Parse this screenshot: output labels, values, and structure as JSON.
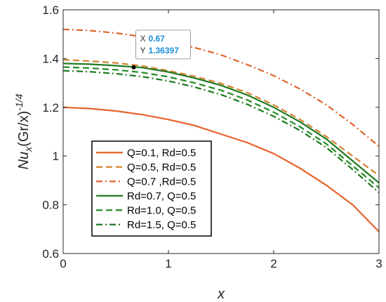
{
  "chart_data": {
    "type": "line",
    "xlabel": "x",
    "ylabel_base": "Nu",
    "ylabel_sub": "x",
    "ylabel_rest": "(Gr/x)",
    "ylabel_exp": "-1/4",
    "xlim": [
      0,
      3
    ],
    "ylim": [
      0.6,
      1.6
    ],
    "xticks": [
      0,
      1,
      2,
      3
    ],
    "yticks": [
      0.6,
      0.8,
      1.0,
      1.2,
      1.4,
      1.6
    ],
    "ytick_labels": [
      "0.6",
      "0.8",
      "1",
      "1.2",
      "1.4",
      "1.6"
    ],
    "grid": false,
    "legend_position": "lower-left",
    "x": [
      0,
      0.25,
      0.5,
      0.75,
      1,
      1.25,
      1.5,
      1.75,
      2,
      2.25,
      2.5,
      2.75,
      3
    ],
    "series": [
      {
        "name": "Q=0.1, Rd=0.5",
        "color": "#e8622a",
        "dash": "solid",
        "values": [
          1.2,
          1.195,
          1.185,
          1.17,
          1.15,
          1.125,
          1.09,
          1.055,
          1.01,
          0.95,
          0.88,
          0.8,
          0.69
        ]
      },
      {
        "name": "Q=0.5, Rd=0.5",
        "color": "#d4822e",
        "dash": "dashed",
        "values": [
          1.395,
          1.39,
          1.382,
          1.37,
          1.35,
          1.327,
          1.298,
          1.26,
          1.21,
          1.15,
          1.08,
          1.0,
          0.92
        ]
      },
      {
        "name": "Q=0.7 ,Rd=0.5",
        "color": "#e0642a",
        "dash": "dashdot",
        "values": [
          1.52,
          1.515,
          1.505,
          1.49,
          1.47,
          1.445,
          1.415,
          1.375,
          1.33,
          1.275,
          1.21,
          1.13,
          1.04
        ]
      },
      {
        "name": "Rd=0.7, Q=0.5",
        "color": "#1f7a1f",
        "dash": "solid",
        "values": [
          1.38,
          1.377,
          1.371,
          1.363,
          1.345,
          1.32,
          1.29,
          1.25,
          1.2,
          1.14,
          1.07,
          0.98,
          0.89
        ]
      },
      {
        "name": "Rd=1.0, Q=0.5",
        "color": "#228b22",
        "dash": "dashed",
        "values": [
          1.365,
          1.361,
          1.354,
          1.343,
          1.325,
          1.3,
          1.27,
          1.23,
          1.18,
          1.12,
          1.05,
          0.96,
          0.87
        ]
      },
      {
        "name": "Rd=1.5, Q=0.5",
        "color": "#1f7a1f",
        "dash": "dashdot",
        "values": [
          1.35,
          1.346,
          1.338,
          1.326,
          1.308,
          1.283,
          1.252,
          1.212,
          1.163,
          1.105,
          1.035,
          0.945,
          0.85
        ]
      }
    ],
    "datatip": {
      "x_label": "X",
      "x_value": "0.67",
      "y_label": "Y",
      "y_value": "1.36397",
      "x": 0.67,
      "y": 1.36397
    }
  }
}
